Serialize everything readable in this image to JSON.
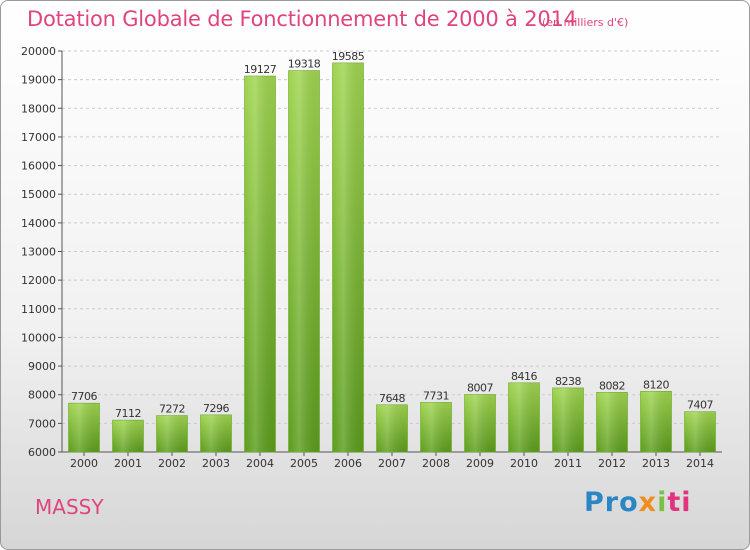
{
  "header": {
    "title": "Dotation Globale de Fonctionnement de 2000 à 2014",
    "unit": "(en milliers d'€)"
  },
  "footer": {
    "city": "MASSY",
    "logo": {
      "parts": [
        "Pro",
        "x",
        "i",
        "ti"
      ]
    }
  },
  "colors": {
    "bar_top": "#9fd44e",
    "bar_bottom": "#5b9c1c",
    "title": "#e0447f",
    "grid": "#cccccc"
  },
  "chart_data": {
    "type": "bar",
    "title": "Dotation Globale de Fonctionnement de 2000 à 2014",
    "subtitle": "(en milliers d'€)",
    "xlabel": "",
    "ylabel": "",
    "ylim": [
      6000,
      20000
    ],
    "yticks": [
      6000,
      7000,
      8000,
      9000,
      10000,
      11000,
      12000,
      13000,
      14000,
      15000,
      16000,
      17000,
      18000,
      19000,
      20000
    ],
    "grid": true,
    "categories": [
      "2000",
      "2001",
      "2002",
      "2003",
      "2004",
      "2005",
      "2006",
      "2007",
      "2008",
      "2009",
      "2010",
      "2011",
      "2012",
      "2013",
      "2014"
    ],
    "values": [
      7706,
      7112,
      7272,
      7296,
      19127,
      19318,
      19585,
      7648,
      7731,
      8007,
      8416,
      8238,
      8082,
      8120,
      7407
    ]
  }
}
